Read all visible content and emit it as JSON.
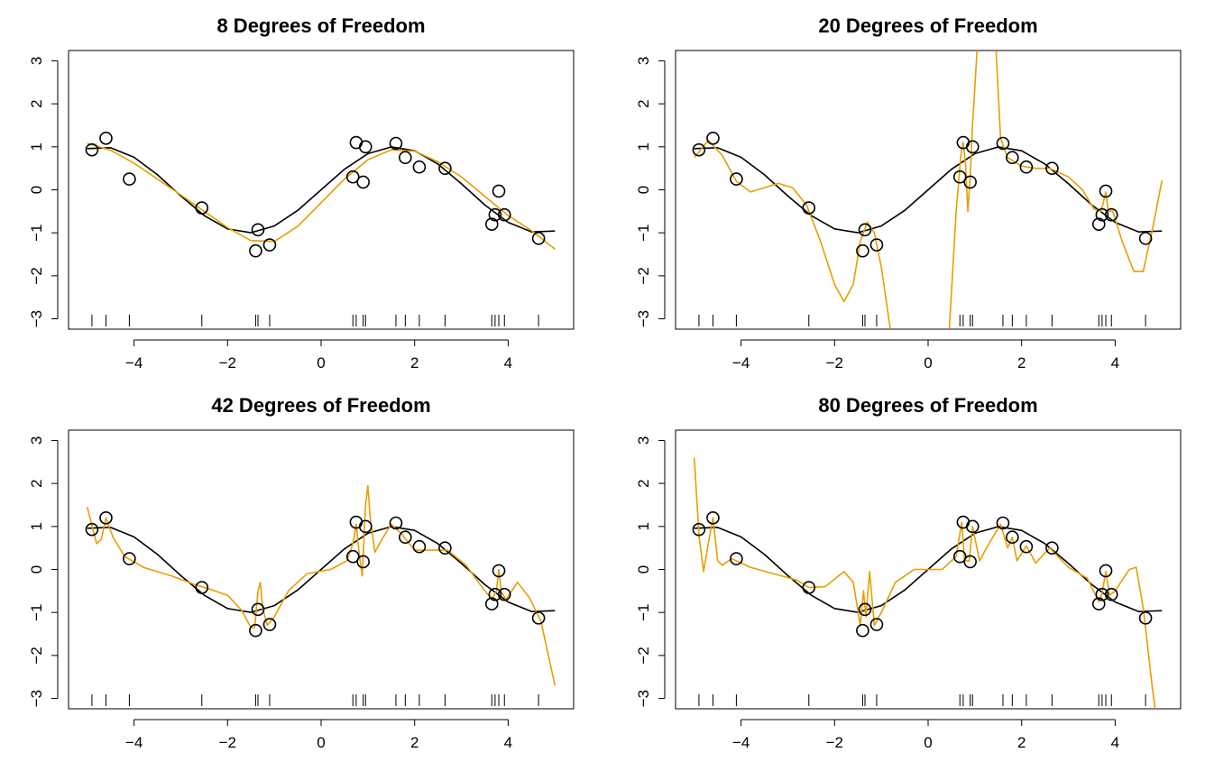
{
  "chart_data": [
    {
      "type": "line",
      "title": "8 Degrees of Freedom",
      "xlim": [
        -5.4,
        5.4
      ],
      "ylim": [
        -3.24,
        3.24
      ],
      "xticks": [
        {
          "value": -4,
          "label": "−4"
        },
        {
          "value": -2,
          "label": "−2"
        },
        0,
        2,
        4
      ],
      "yticks": [
        {
          "value": -3,
          "label": "−3"
        },
        {
          "value": -2,
          "label": "−2"
        },
        {
          "value": -1,
          "label": "−1"
        },
        0,
        1,
        2,
        3
      ],
      "points": {
        "color": "#000000",
        "x": [
          -4.9,
          -4.6,
          -4.1,
          -2.55,
          -1.4,
          -1.35,
          -1.1,
          0.68,
          0.75,
          0.9,
          0.95,
          1.6,
          1.8,
          2.1,
          2.65,
          3.65,
          3.72,
          3.8,
          3.92,
          4.65
        ],
        "y": [
          0.93,
          1.2,
          0.25,
          -0.42,
          -1.42,
          -0.93,
          -1.28,
          0.3,
          1.1,
          0.18,
          1.0,
          1.08,
          0.75,
          0.53,
          0.5,
          -0.8,
          -0.58,
          -0.03,
          -0.58,
          -1.13
        ]
      },
      "true_curve": {
        "color": "#000000",
        "x": [
          -5,
          -4.5,
          -4,
          -3.5,
          -3,
          -2.5,
          -2,
          -1.5,
          -1,
          -0.5,
          0,
          0.5,
          1,
          1.5,
          2,
          2.5,
          3,
          3.5,
          4,
          4.5,
          5
        ],
        "y": [
          0.959,
          0.978,
          0.757,
          0.351,
          -0.141,
          -0.598,
          -0.909,
          -0.997,
          -0.841,
          -0.479,
          0,
          0.479,
          0.841,
          0.997,
          0.909,
          0.598,
          0.141,
          -0.351,
          -0.757,
          -0.978,
          -0.959
        ]
      },
      "fit": {
        "color": "#E69F00",
        "x": [
          -5,
          -4.5,
          -4,
          -3.5,
          -3,
          -2.5,
          -2,
          -1.5,
          -1,
          -0.5,
          0,
          0.5,
          1,
          1.5,
          2,
          2.5,
          3,
          3.5,
          4,
          4.5,
          5
        ],
        "y": [
          1.08,
          0.92,
          0.62,
          0.25,
          -0.12,
          -0.5,
          -0.88,
          -1.18,
          -1.2,
          -0.85,
          -0.3,
          0.25,
          0.7,
          0.93,
          0.9,
          0.65,
          0.3,
          -0.15,
          -0.6,
          -0.95,
          -1.38
        ]
      }
    },
    {
      "type": "line",
      "title": "20 Degrees of Freedom",
      "xlim": [
        -5.4,
        5.4
      ],
      "ylim": [
        -3.24,
        3.24
      ],
      "xticks": [
        {
          "value": -4,
          "label": "−4"
        },
        {
          "value": -2,
          "label": "−2"
        },
        0,
        2,
        4
      ],
      "yticks": [
        {
          "value": -3,
          "label": "−3"
        },
        {
          "value": -2,
          "label": "−2"
        },
        {
          "value": -1,
          "label": "−1"
        },
        0,
        1,
        2,
        3
      ],
      "points": {
        "color": "#000000",
        "x": [
          -4.9,
          -4.6,
          -4.1,
          -2.55,
          -1.4,
          -1.35,
          -1.1,
          0.68,
          0.75,
          0.9,
          0.95,
          1.6,
          1.8,
          2.1,
          2.65,
          3.65,
          3.72,
          3.8,
          3.92,
          4.65
        ],
        "y": [
          0.93,
          1.2,
          0.25,
          -0.42,
          -1.42,
          -0.93,
          -1.28,
          0.3,
          1.1,
          0.18,
          1.0,
          1.08,
          0.75,
          0.53,
          0.5,
          -0.8,
          -0.58,
          -0.03,
          -0.58,
          -1.13
        ]
      },
      "true_curve": {
        "color": "#000000",
        "x": [
          -5,
          -4.5,
          -4,
          -3.5,
          -3,
          -2.5,
          -2,
          -1.5,
          -1,
          -0.5,
          0,
          0.5,
          1,
          1.5,
          2,
          2.5,
          3,
          3.5,
          4,
          4.5,
          5
        ],
        "y": [
          0.959,
          0.978,
          0.757,
          0.351,
          -0.141,
          -0.598,
          -0.909,
          -0.997,
          -0.841,
          -0.479,
          0,
          0.479,
          0.841,
          0.997,
          0.909,
          0.598,
          0.141,
          -0.351,
          -0.757,
          -0.978,
          -0.959
        ]
      },
      "fit": {
        "color": "#E69F00",
        "x": [
          -5,
          -4.7,
          -4.4,
          -4.1,
          -3.8,
          -3.5,
          -3.2,
          -2.9,
          -2.6,
          -2.3,
          -2.0,
          -1.8,
          -1.6,
          -1.45,
          -1.3,
          -1.15,
          -1.0,
          -0.8,
          -0.6,
          0.3,
          0.45,
          0.6,
          0.7,
          0.75,
          0.8,
          0.85,
          0.9,
          0.95,
          1.05,
          1.15,
          1.35,
          1.45,
          1.55,
          1.7,
          2.0,
          2.3,
          2.6,
          3.0,
          3.3,
          3.55,
          3.7,
          3.8,
          3.85,
          3.95,
          4.15,
          4.4,
          4.6,
          4.8,
          5
        ],
        "y": [
          0.75,
          1.15,
          0.8,
          0.2,
          -0.05,
          0.05,
          0.15,
          0.05,
          -0.35,
          -1.2,
          -2.2,
          -2.6,
          -2.2,
          -1.2,
          -0.75,
          -1.0,
          -1.8,
          -3.3,
          -5,
          -5,
          -3.3,
          -0.5,
          0.8,
          1.1,
          0.6,
          -0.5,
          0.3,
          1.5,
          3.3,
          5,
          5,
          3.3,
          1.2,
          0.75,
          0.55,
          0.5,
          0.5,
          0.3,
          0.0,
          -0.45,
          -0.5,
          -0.05,
          -0.5,
          -0.5,
          -1.2,
          -1.9,
          -1.9,
          -0.9,
          0.22
        ]
      }
    },
    {
      "type": "line",
      "title": "42 Degrees of Freedom",
      "xlim": [
        -5.4,
        5.4
      ],
      "ylim": [
        -3.24,
        3.24
      ],
      "xticks": [
        {
          "value": -4,
          "label": "−4"
        },
        {
          "value": -2,
          "label": "−2"
        },
        0,
        2,
        4
      ],
      "yticks": [
        {
          "value": -3,
          "label": "−3"
        },
        {
          "value": -2,
          "label": "−2"
        },
        {
          "value": -1,
          "label": "−1"
        },
        0,
        1,
        2,
        3
      ],
      "points": {
        "color": "#000000",
        "x": [
          -4.9,
          -4.6,
          -4.1,
          -2.55,
          -1.4,
          -1.35,
          -1.1,
          0.68,
          0.75,
          0.9,
          0.95,
          1.6,
          1.8,
          2.1,
          2.65,
          3.65,
          3.72,
          3.8,
          3.92,
          4.65
        ],
        "y": [
          0.93,
          1.2,
          0.25,
          -0.42,
          -1.42,
          -0.93,
          -1.28,
          0.3,
          1.1,
          0.18,
          1.0,
          1.08,
          0.75,
          0.53,
          0.5,
          -0.8,
          -0.58,
          -0.03,
          -0.58,
          -1.13
        ]
      },
      "true_curve": {
        "color": "#000000",
        "x": [
          -5,
          -4.5,
          -4,
          -3.5,
          -3,
          -2.5,
          -2,
          -1.5,
          -1,
          -0.5,
          0,
          0.5,
          1,
          1.5,
          2,
          2.5,
          3,
          3.5,
          4,
          4.5,
          5
        ],
        "y": [
          0.959,
          0.978,
          0.757,
          0.351,
          -0.141,
          -0.598,
          -0.909,
          -0.997,
          -0.841,
          -0.479,
          0,
          0.479,
          0.841,
          0.997,
          0.909,
          0.598,
          0.141,
          -0.351,
          -0.757,
          -0.978,
          -0.959
        ]
      },
      "fit": {
        "color": "#E69F00",
        "x": [
          -5,
          -4.8,
          -4.7,
          -4.6,
          -4.45,
          -4.2,
          -3.8,
          -3.2,
          -2.7,
          -2.4,
          -2.0,
          -1.7,
          -1.5,
          -1.42,
          -1.35,
          -1.3,
          -1.25,
          -1.15,
          -1.0,
          -0.7,
          -0.3,
          0.2,
          0.55,
          0.68,
          0.75,
          0.82,
          0.88,
          0.95,
          1.0,
          1.05,
          1.15,
          1.3,
          1.5,
          1.7,
          2.0,
          2.3,
          2.7,
          3.1,
          3.4,
          3.65,
          3.75,
          3.8,
          3.85,
          3.95,
          4.2,
          4.45,
          4.7,
          5
        ],
        "y": [
          1.45,
          0.6,
          0.7,
          1.2,
          0.75,
          0.3,
          0.05,
          -0.15,
          -0.35,
          -0.45,
          -0.6,
          -0.95,
          -1.35,
          -1.35,
          -0.5,
          -0.3,
          -0.9,
          -1.3,
          -1.1,
          -0.5,
          -0.1,
          0.0,
          0.2,
          0.6,
          1.05,
          0.3,
          -0.15,
          1.5,
          1.95,
          1.2,
          0.4,
          0.7,
          1.05,
          0.85,
          0.45,
          0.45,
          0.45,
          0.1,
          -0.35,
          -0.7,
          -0.5,
          0.0,
          -0.5,
          -0.7,
          -0.3,
          -0.65,
          -1.2,
          -2.7
        ]
      }
    },
    {
      "type": "line",
      "title": "80 Degrees of Freedom",
      "xlim": [
        -5.4,
        5.4
      ],
      "ylim": [
        -3.24,
        3.24
      ],
      "xticks": [
        {
          "value": -4,
          "label": "−4"
        },
        {
          "value": -2,
          "label": "−2"
        },
        0,
        2,
        4
      ],
      "yticks": [
        {
          "value": -3,
          "label": "−3"
        },
        {
          "value": -2,
          "label": "−2"
        },
        {
          "value": -1,
          "label": "−1"
        },
        0,
        1,
        2,
        3
      ],
      "points": {
        "color": "#000000",
        "x": [
          -4.9,
          -4.6,
          -4.1,
          -2.55,
          -1.4,
          -1.35,
          -1.1,
          0.68,
          0.75,
          0.9,
          0.95,
          1.6,
          1.8,
          2.1,
          2.65,
          3.65,
          3.72,
          3.8,
          3.92,
          4.65
        ],
        "y": [
          0.93,
          1.2,
          0.25,
          -0.42,
          -1.42,
          -0.93,
          -1.28,
          0.3,
          1.1,
          0.18,
          1.0,
          1.08,
          0.75,
          0.53,
          0.5,
          -0.8,
          -0.58,
          -0.03,
          -0.58,
          -1.13
        ]
      },
      "true_curve": {
        "color": "#000000",
        "x": [
          -5,
          -4.5,
          -4,
          -3.5,
          -3,
          -2.5,
          -2,
          -1.5,
          -1,
          -0.5,
          0,
          0.5,
          1,
          1.5,
          2,
          2.5,
          3,
          3.5,
          4,
          4.5,
          5
        ],
        "y": [
          0.959,
          0.978,
          0.757,
          0.351,
          -0.141,
          -0.598,
          -0.909,
          -0.997,
          -0.841,
          -0.479,
          0,
          0.479,
          0.841,
          0.997,
          0.909,
          0.598,
          0.141,
          -0.351,
          -0.757,
          -0.978,
          -0.959
        ]
      },
      "fit": {
        "color": "#E69F00",
        "x": [
          -5,
          -4.9,
          -4.8,
          -4.7,
          -4.6,
          -4.5,
          -4.4,
          -4.2,
          -3.8,
          -3.3,
          -2.8,
          -2.55,
          -2.2,
          -1.8,
          -1.6,
          -1.45,
          -1.38,
          -1.33,
          -1.25,
          -1.15,
          -1.0,
          -0.7,
          -0.3,
          0.3,
          0.6,
          0.72,
          0.78,
          0.88,
          0.95,
          1.1,
          1.3,
          1.55,
          1.7,
          1.8,
          1.9,
          2.1,
          2.3,
          2.6,
          3.0,
          3.4,
          3.65,
          3.72,
          3.8,
          3.88,
          4.0,
          4.3,
          4.45,
          4.6,
          4.8,
          4.9
        ],
        "y": [
          2.6,
          0.8,
          -0.05,
          0.6,
          1.2,
          0.2,
          0.1,
          0.25,
          0.05,
          -0.1,
          -0.25,
          -0.42,
          -0.4,
          -0.05,
          -0.3,
          -1.3,
          -0.5,
          -1.1,
          -0.05,
          -1.3,
          -1.0,
          -0.3,
          0.0,
          0.0,
          0.3,
          1.1,
          0.2,
          0.2,
          1.0,
          0.2,
          0.6,
          1.05,
          0.5,
          0.75,
          0.2,
          0.55,
          0.15,
          0.5,
          0.05,
          -0.2,
          -0.75,
          -0.55,
          -0.05,
          -0.6,
          -0.5,
          0.0,
          0.05,
          -0.9,
          -2.8,
          -3.6
        ]
      }
    }
  ]
}
